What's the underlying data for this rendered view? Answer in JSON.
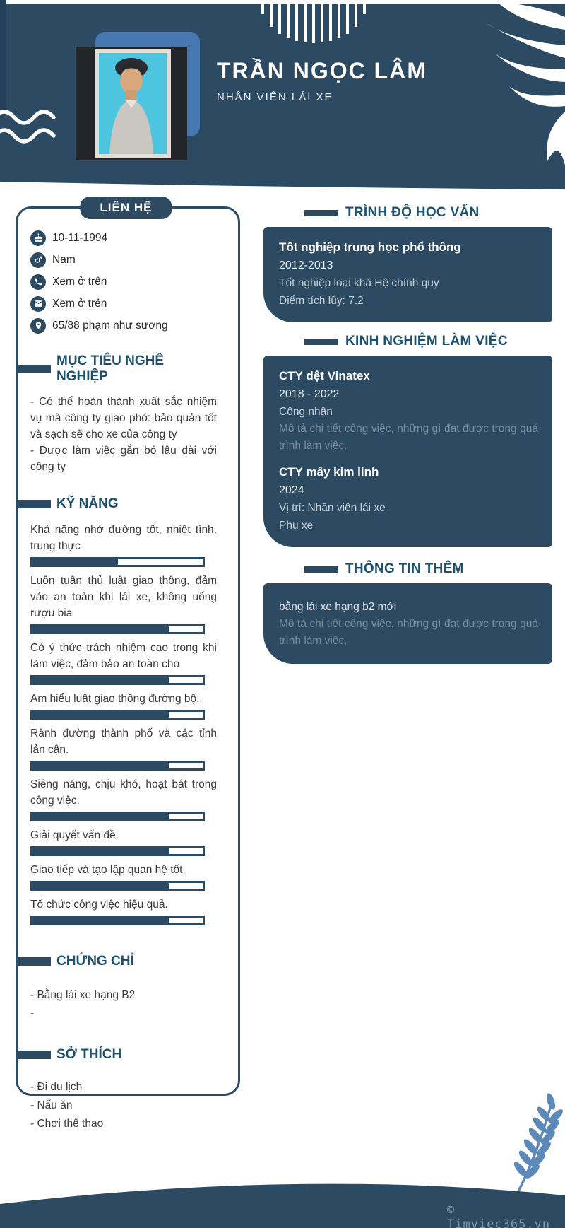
{
  "header": {
    "name": "TRẦN NGỌC LÂM",
    "title": "NHÂN VIÊN LÁI XE"
  },
  "contact": {
    "heading": "LIÊN HỆ",
    "items": [
      {
        "icon": "birthday-icon",
        "text": "10-11-1994"
      },
      {
        "icon": "gender-icon",
        "text": "Nam"
      },
      {
        "icon": "phone-icon",
        "text": "Xem ở trên"
      },
      {
        "icon": "email-icon",
        "text": "Xem ở trên"
      },
      {
        "icon": "location-icon",
        "text": "65/88 phạm như sương"
      }
    ]
  },
  "objective": {
    "heading": "MỤC TIÊU NGHỀ NGHIỆP",
    "lines": [
      "- Có thể hoàn thành xuất sắc nhiệm vụ mà công ty giao phó: bảo quản tốt và sạch sẽ cho xe của công ty",
      "- Được làm việc gắn bó lâu dài với công ty"
    ]
  },
  "skills": {
    "heading": "KỸ NĂNG",
    "items": [
      {
        "label": "Khả năng nhớ đường tốt, nhiệt tình, trung thực",
        "percent": 50
      },
      {
        "label": "Luôn tuân thủ luật giao thông, đảm vảo an toàn khi lái xe, không uống rượu bia",
        "percent": 80
      },
      {
        "label": "Có ý thức trách nhiệm cao trong khi làm việc, đảm bảo an toàn cho",
        "percent": 80
      },
      {
        "label": "Am hiểu luật giao thông đường bộ.",
        "percent": 80
      },
      {
        "label": "Rành đường thành phố và các tỉnh lản cận.",
        "percent": 80
      },
      {
        "label": "Siêng năng, chịu khó, hoạt bát trong công việc.",
        "percent": 80
      },
      {
        "label": "Giải quyết vấn đề.",
        "percent": 80
      },
      {
        "label": "Giao tiếp và tạo lập quan hệ tốt.",
        "percent": 80
      },
      {
        "label": "Tổ chức công việc hiệu quả.",
        "percent": 80
      }
    ]
  },
  "certificates": {
    "heading": "CHỨNG CHỈ",
    "items": [
      "- Bằng lái xe hạng B2",
      "-"
    ]
  },
  "hobbies": {
    "heading": "SỞ THÍCH",
    "items": [
      "- Đi du lịch",
      "- Nấu ăn",
      "- Chơi thể thao"
    ]
  },
  "education": {
    "heading": "TRÌNH ĐỘ HỌC VẤN",
    "school": "Tốt nghiệp trung học phổ thông",
    "period": "2012-2013",
    "detail": "Tốt nghiệp loại khá Hệ chính quy",
    "gpa": "Điểm tích lũy: 7.2"
  },
  "experience": {
    "heading": "KINH NGHIỆM LÀM VIỆC",
    "jobs": [
      {
        "company": "CTY dệt Vinatex",
        "period": "2018 - 2022",
        "role": "Công nhân",
        "description": " Mô tả chi tiết công việc, những gì đạt được trong quá trình làm việc."
      },
      {
        "company": "CTY mấy kim linh",
        "period": "2024",
        "role": "Vị trí: Nhân viên lái xe",
        "extra": "Phụ xe"
      }
    ]
  },
  "additional": {
    "heading": "THÔNG TIN THÊM",
    "title": "bằng lái xe hạng b2 mới",
    "description": " Mô tả chi tiết công việc, những gì đạt được trong quá trình làm việc."
  },
  "footer": {
    "watermark": "© Timviec365.vn"
  },
  "colors": {
    "navy": "#2d4a63",
    "heading_text": "#1b506f",
    "photo_accent": "#4578b1",
    "leaf_blue": "#5d89b8",
    "watermark_text": "#7e98ab"
  }
}
